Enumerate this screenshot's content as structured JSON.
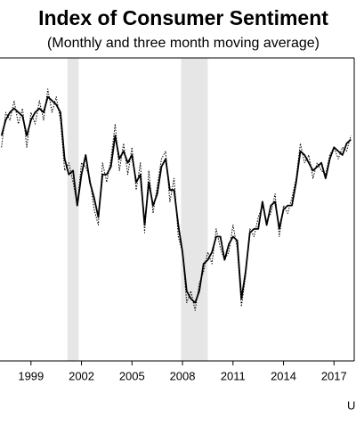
{
  "chart_data": {
    "type": "line",
    "title": "Index of Consumer Sentiment",
    "subtitle": "(Monthly and three month moving average)",
    "source": "U",
    "x": [
      1997.25,
      1997.5,
      1997.75,
      1998,
      1998.25,
      1998.5,
      1998.75,
      1999,
      1999.25,
      1999.5,
      1999.75,
      2000,
      2000.25,
      2000.5,
      2000.75,
      2001,
      2001.25,
      2001.5,
      2001.75,
      2002,
      2002.25,
      2002.5,
      2002.75,
      2003,
      2003.25,
      2003.5,
      2003.75,
      2004,
      2004.25,
      2004.5,
      2004.75,
      2005,
      2005.25,
      2005.5,
      2005.75,
      2006,
      2006.25,
      2006.5,
      2006.75,
      2007,
      2007.25,
      2007.5,
      2007.75,
      2008,
      2008.25,
      2008.5,
      2008.75,
      2009,
      2009.25,
      2009.5,
      2009.75,
      2010,
      2010.25,
      2010.5,
      2010.75,
      2011,
      2011.25,
      2011.5,
      2011.75,
      2012,
      2012.25,
      2012.5,
      2012.75,
      2013,
      2013.25,
      2013.5,
      2013.75,
      2014,
      2014.25,
      2014.5,
      2014.75,
      2015,
      2015.25,
      2015.5,
      2015.75,
      2016,
      2016.25,
      2016.5,
      2016.75,
      2017,
      2017.25,
      2017.5,
      2017.75,
      2018
    ],
    "series": [
      {
        "color": "#000000",
        "dashed": true,
        "values": [
          97,
          106,
          104,
          109,
          103,
          107,
          97,
          106,
          103,
          109,
          104,
          112,
          106,
          110,
          104,
          91,
          93,
          88,
          82,
          93,
          92,
          89,
          81,
          77,
          93,
          88,
          94,
          103,
          91,
          98,
          90,
          97,
          86,
          93,
          75,
          91,
          80,
          87,
          94,
          96,
          83,
          89,
          74,
          70,
          57,
          60,
          55,
          62,
          65,
          70,
          67,
          76,
          71,
          68,
          70,
          77,
          71,
          56,
          64,
          76,
          74,
          79,
          82,
          78,
          80,
          85,
          74,
          82,
          80,
          84,
          89,
          98,
          93,
          95,
          89,
          93,
          91,
          90,
          95,
          97,
          94,
          97,
          96,
          100
        ],
        "width": 1
      },
      {
        "color": "#000000",
        "dashed": false,
        "values": [
          100,
          104,
          106,
          107,
          106,
          105,
          100,
          104,
          106,
          107,
          106,
          110,
          109,
          108,
          106,
          94,
          90,
          91,
          82,
          90,
          95,
          88,
          84,
          79,
          90,
          90,
          92,
          100,
          94,
          96,
          93,
          95,
          88,
          90,
          77,
          88,
          82,
          85,
          92,
          94,
          86,
          86,
          77,
          70,
          60,
          58,
          57,
          60,
          67,
          68,
          70,
          74,
          74,
          68,
          72,
          74,
          73,
          58,
          65,
          75,
          76,
          76,
          83,
          77,
          82,
          83,
          76,
          81,
          82,
          82,
          88,
          96,
          95,
          93,
          91,
          92,
          93,
          89,
          94,
          97,
          96,
          95,
          98,
          99
        ],
        "width": 1.8
      }
    ],
    "recessions": [
      [
        2001.17,
        2001.83
      ],
      [
        2007.92,
        2009.5
      ]
    ],
    "xlim": [
      1997.16,
      2018.2
    ],
    "ylim": [
      42,
      120
    ],
    "xticks": [
      1999,
      2002,
      2005,
      2008,
      2011,
      2014,
      2017
    ]
  }
}
